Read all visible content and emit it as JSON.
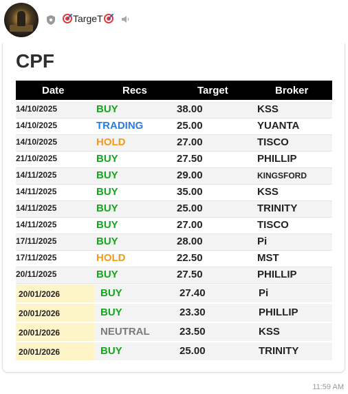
{
  "channel": {
    "name": "TargeT",
    "icons": [
      "shield-icon",
      "target-icon",
      "target-icon",
      "mute-icon"
    ]
  },
  "post": {
    "title": "CPF",
    "columns": [
      "Date",
      "Recs",
      "Target",
      "Broker"
    ],
    "rows": [
      {
        "date": "14/10/2025",
        "rec": "BUY",
        "target": "38.00",
        "broker": "KSS"
      },
      {
        "date": "14/10/2025",
        "rec": "TRADING",
        "target": "25.00",
        "broker": "YUANTA"
      },
      {
        "date": "14/10/2025",
        "rec": "HOLD",
        "target": "27.00",
        "broker": "TISCO"
      },
      {
        "date": "21/10/2025",
        "rec": "BUY",
        "target": "27.50",
        "broker": "PHILLIP"
      },
      {
        "date": "14/11/2025",
        "rec": "BUY",
        "target": "29.00",
        "broker": "KINGSFORD"
      },
      {
        "date": "14/11/2025",
        "rec": "BUY",
        "target": "35.00",
        "broker": "KSS"
      },
      {
        "date": "14/11/2025",
        "rec": "BUY",
        "target": "25.00",
        "broker": "TRINITY"
      },
      {
        "date": "14/11/2025",
        "rec": "BUY",
        "target": "27.00",
        "broker": "TISCO"
      },
      {
        "date": "17/11/2025",
        "rec": "BUY",
        "target": "28.00",
        "broker": "Pi"
      },
      {
        "date": "17/11/2025",
        "rec": "HOLD",
        "target": "22.50",
        "broker": "MST"
      },
      {
        "date": "20/11/2025",
        "rec": "BUY",
        "target": "27.50",
        "broker": "PHILLIP"
      }
    ],
    "new_rows": [
      {
        "date": "20/01/2026",
        "rec": "BUY",
        "target": "27.40",
        "broker": "Pi"
      },
      {
        "date": "20/01/2026",
        "rec": "BUY",
        "target": "23.30",
        "broker": "PHILLIP"
      },
      {
        "date": "20/01/2026",
        "rec": "NEUTRAL",
        "target": "23.50",
        "broker": "KSS"
      },
      {
        "date": "20/01/2026",
        "rec": "BUY",
        "target": "25.00",
        "broker": "TRINITY"
      }
    ],
    "time": "11:59 AM"
  },
  "colors": {
    "BUY": "#12a51b",
    "TRADING": "#2a7ae0",
    "HOLD": "#f39a12",
    "NEUTRAL": "#7a7a7a",
    "new_date_highlight": "#fdf5c8"
  }
}
